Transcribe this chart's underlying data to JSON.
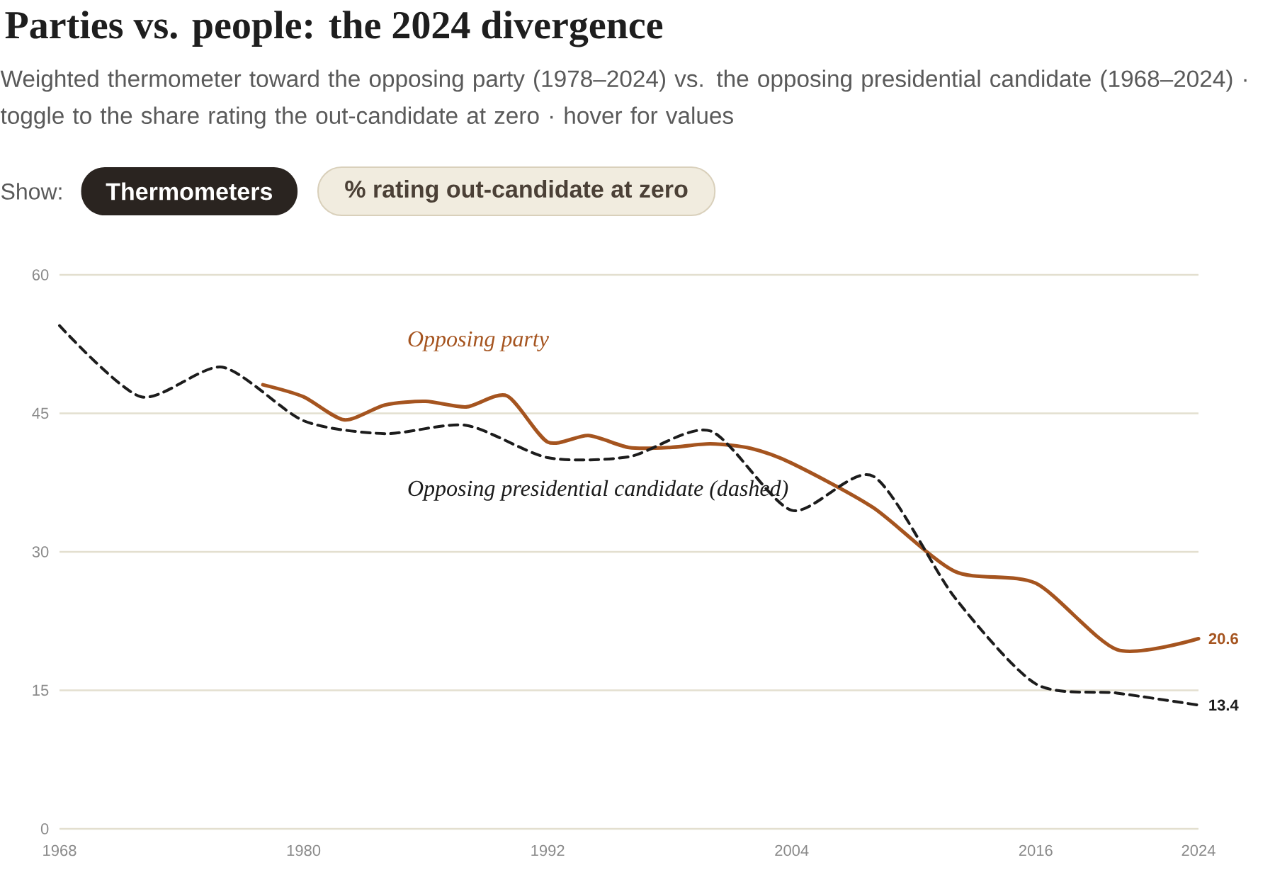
{
  "chart_data": {
    "type": "line",
    "title": "Parties vs. people: the 2024 divergence",
    "subtitle": "Weighted thermometer toward the opposing party (1978–2024) vs. the opposing presidential candidate (1968–2024) · toggle to the share rating the out-candidate at zero · hover for values",
    "annotations": [
      "Show:",
      "Thermometers",
      "% rating out-candidate at zero"
    ],
    "xlim": [
      1968,
      2024
    ],
    "xticks": [
      1968,
      1980,
      1992,
      2004,
      2016,
      2024
    ],
    "ylim": [
      0,
      60
    ],
    "yticks": [
      0,
      15,
      30,
      45,
      60
    ],
    "grid": "y",
    "legend": false,
    "series": [
      {
        "name": "Opposing party",
        "color": "#a5541f",
        "line_style": "solid",
        "x": [
          1978,
          1980,
          1982,
          1984,
          1986,
          1988,
          1990,
          1992,
          1994,
          1996,
          1998,
          2000,
          2002,
          2004,
          2008,
          2012,
          2016,
          2020,
          2024
        ],
        "values": [
          48.1,
          46.8,
          44.3,
          45.9,
          46.3,
          45.7,
          46.9,
          41.9,
          42.6,
          41.3,
          41.3,
          41.7,
          41.2,
          39.6,
          34.8,
          27.9,
          26.6,
          19.4,
          20.6
        ],
        "value_labels": [
          null,
          null,
          null,
          null,
          null,
          null,
          null,
          null,
          null,
          null,
          null,
          null,
          null,
          null,
          null,
          null,
          null,
          null,
          "20.6"
        ]
      },
      {
        "name": "Opposing presidential candidate (dashed)",
        "color": "#1c1c1c",
        "line_style": "dashed",
        "x": [
          1968,
          1972,
          1976,
          1980,
          1984,
          1988,
          1992,
          1996,
          2000,
          2004,
          2008,
          2012,
          2016,
          2020,
          2024
        ],
        "values": [
          54.5,
          46.8,
          50.0,
          44.2,
          42.8,
          43.7,
          40.2,
          40.3,
          43.1,
          34.5,
          38.2,
          25.1,
          15.7,
          14.7,
          13.4
        ],
        "value_labels": [
          null,
          null,
          null,
          null,
          null,
          null,
          null,
          null,
          null,
          null,
          null,
          null,
          null,
          null,
          "13.4"
        ]
      }
    ]
  }
}
